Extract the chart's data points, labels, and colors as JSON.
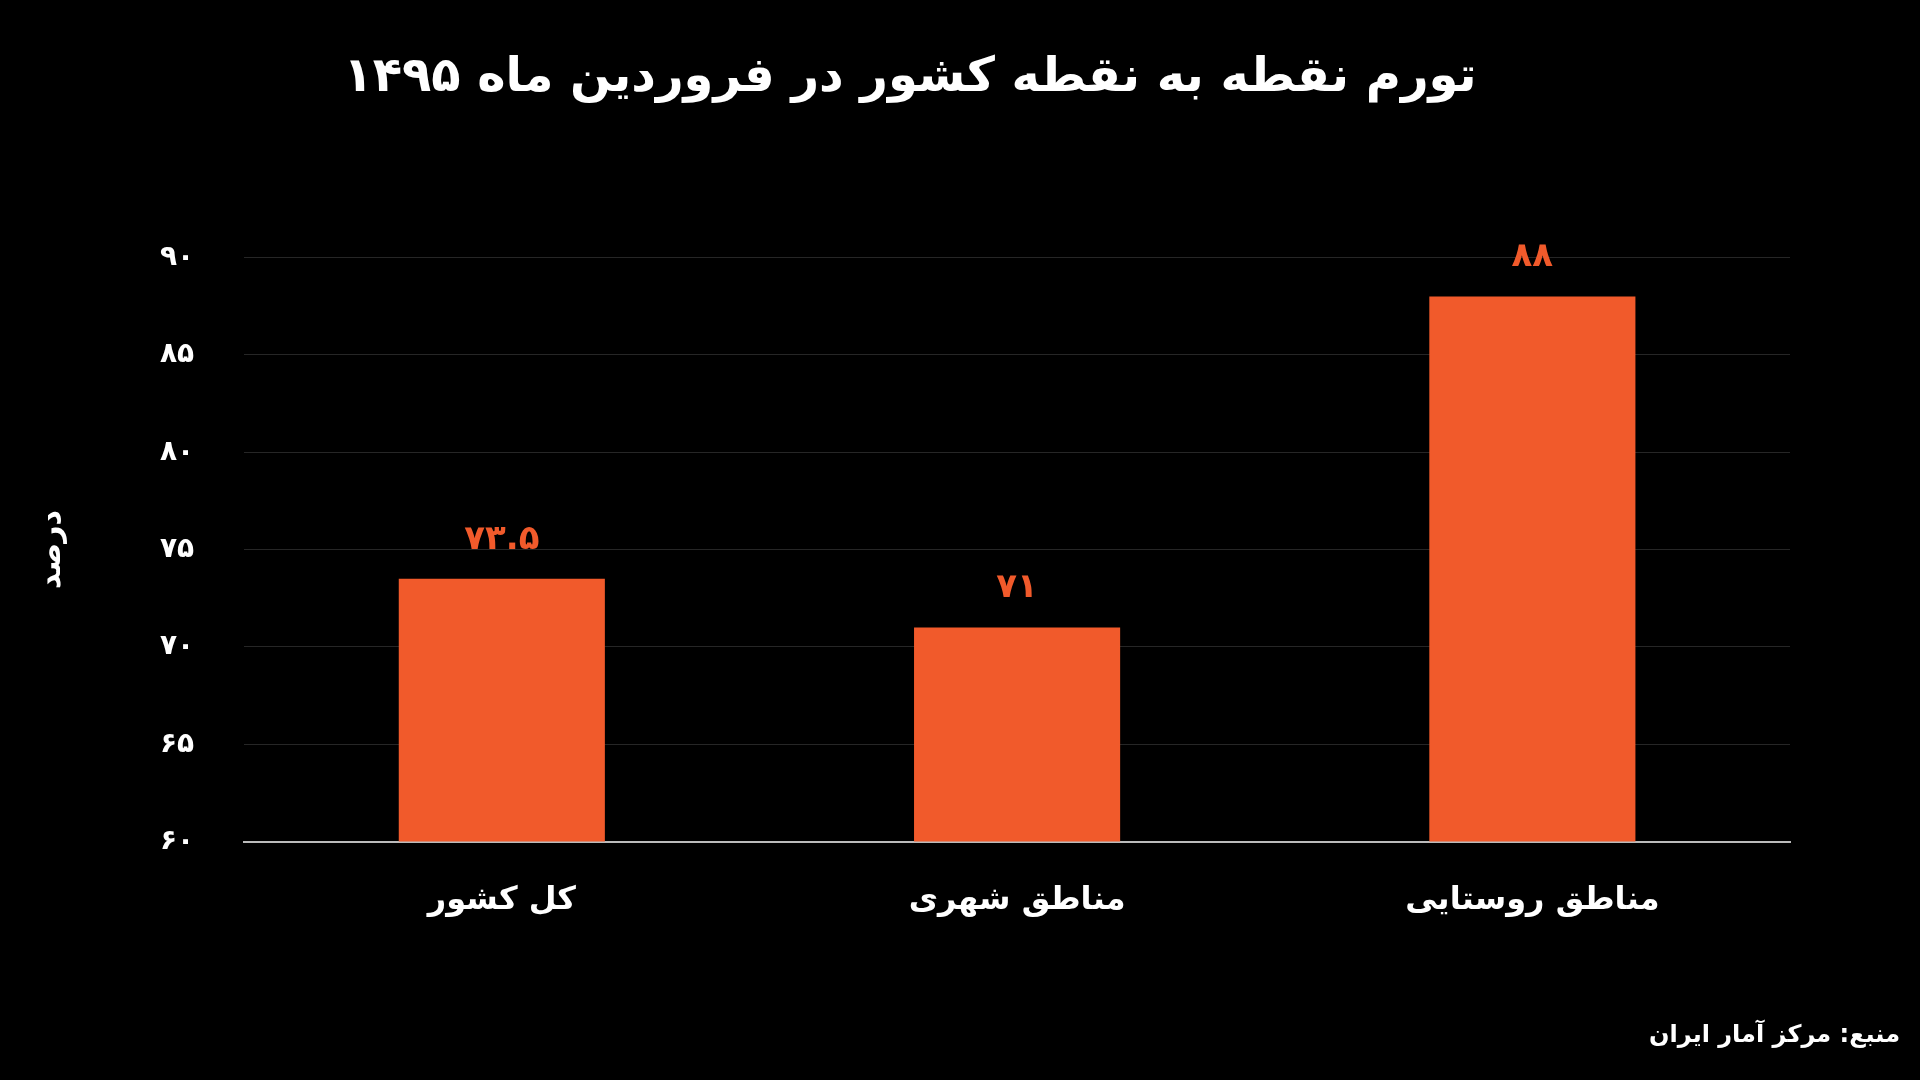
{
  "chart_data": {
    "type": "bar",
    "title": "تورم نقطه به نقطه کشور در فروردین ماه ۱۴۹۵",
    "ylabel": "درصد",
    "categories": [
      "کل کشور",
      "مناطق شهری",
      "مناطق روستایی"
    ],
    "values": [
      73.5,
      71,
      88
    ],
    "color": "#f15a2b",
    "value_labels": [
      "۷۳.۵",
      "۷۱",
      "۸۸"
    ],
    "ylim": [
      60,
      90
    ],
    "yticks": [
      {
        "value": 60,
        "label": "۶۰"
      },
      {
        "value": 65,
        "label": "۶۵"
      },
      {
        "value": 70,
        "label": "۷۰"
      },
      {
        "value": 75,
        "label": "۷۵"
      },
      {
        "value": 80,
        "label": "۸۰"
      },
      {
        "value": 85,
        "label": "۸۵"
      },
      {
        "value": 90,
        "label": "۹۰"
      }
    ],
    "grid": "y",
    "legend": false,
    "annotations": [
      "منبع: مرکز آمار ایران"
    ]
  }
}
